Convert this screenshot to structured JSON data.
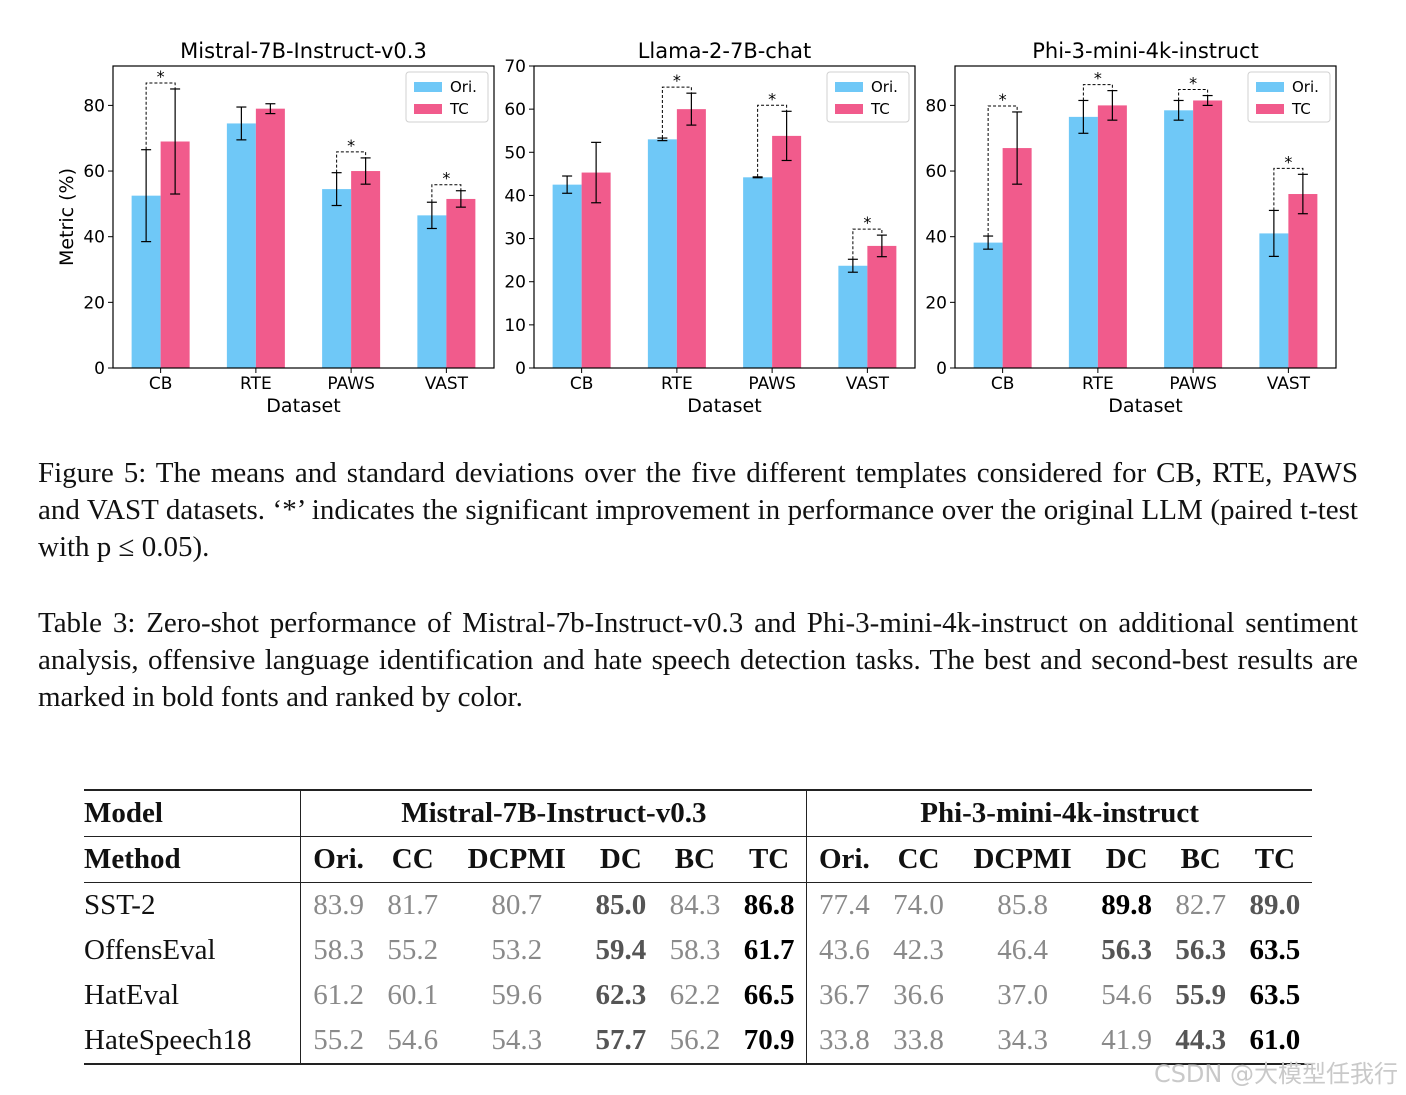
{
  "chart_data": [
    {
      "type": "bar",
      "title": "Mistral-7B-Instruct-v0.3",
      "xlabel": "Dataset",
      "ylabel": "Metric (%)",
      "categories": [
        "CB",
        "RTE",
        "PAWS",
        "VAST"
      ],
      "ylim": [
        0,
        92
      ],
      "yticks": [
        0,
        20,
        40,
        60,
        80
      ],
      "legend": [
        "Ori.",
        "TC"
      ],
      "legend_position": "top-right",
      "series": [
        {
          "name": "Ori.",
          "values": [
            52.5,
            74.5,
            54.5,
            46.5
          ],
          "errors": [
            14.0,
            5.0,
            5.0,
            4.0
          ]
        },
        {
          "name": "TC",
          "values": [
            69.0,
            79.0,
            60.0,
            51.5
          ],
          "errors": [
            16.0,
            1.5,
            4.0,
            2.5
          ]
        }
      ],
      "significant": [
        true,
        false,
        true,
        true
      ]
    },
    {
      "type": "bar",
      "title": "Llama-2-7B-chat",
      "xlabel": "Dataset",
      "ylabel": "",
      "categories": [
        "CB",
        "RTE",
        "PAWS",
        "VAST"
      ],
      "ylim": [
        0,
        70
      ],
      "yticks": [
        0,
        10,
        20,
        30,
        40,
        50,
        60,
        70
      ],
      "legend": [
        "Ori.",
        "TC"
      ],
      "legend_position": "top-right",
      "series": [
        {
          "name": "Ori.",
          "values": [
            42.5,
            53.0,
            44.2,
            23.7
          ],
          "errors": [
            2.0,
            0.3,
            0.1,
            1.5
          ]
        },
        {
          "name": "TC",
          "values": [
            45.3,
            60.0,
            53.8,
            28.3
          ],
          "errors": [
            7.0,
            3.7,
            5.7,
            2.5
          ]
        }
      ],
      "significant": [
        false,
        true,
        true,
        true
      ]
    },
    {
      "type": "bar",
      "title": "Phi-3-mini-4k-instruct",
      "xlabel": "Dataset",
      "ylabel": "",
      "categories": [
        "CB",
        "RTE",
        "PAWS",
        "VAST"
      ],
      "ylim": [
        0,
        92
      ],
      "yticks": [
        0,
        20,
        40,
        60,
        80
      ],
      "legend": [
        "Ori.",
        "TC"
      ],
      "legend_position": "top-right",
      "series": [
        {
          "name": "Ori.",
          "values": [
            38.2,
            76.5,
            78.5,
            41.0
          ],
          "errors": [
            2.0,
            5.0,
            3.0,
            7.0
          ]
        },
        {
          "name": "TC",
          "values": [
            67.0,
            80.0,
            81.5,
            53.0
          ],
          "errors": [
            11.0,
            4.5,
            1.5,
            6.0
          ]
        }
      ],
      "significant": [
        true,
        true,
        true,
        true
      ]
    }
  ],
  "figure": {
    "sig_marker": "*",
    "caption": "Figure 5: The means and standard deviations over the five different templates considered for CB, RTE, PAWS and VAST datasets. ‘*’ indicates the significant improvement in performance over the original LLM (paired t-test with p ≤ 0.05)."
  },
  "table_caption": "Table 3: Zero-shot performance of Mistral-7b-Instruct-v0.3 and Phi-3-mini-4k-instruct on additional sentiment analysis, offensive language identification and hate speech detection tasks. The best and second-best results are marked in bold fonts and ranked by color.",
  "table": {
    "model_label": "Model",
    "method_label": "Method",
    "groups": [
      "Mistral-7B-Instruct-v0.3",
      "Phi-3-mini-4k-instruct"
    ],
    "methods": [
      "Ori.",
      "CC",
      "DCPMI",
      "DC",
      "BC",
      "TC",
      "Ori.",
      "CC",
      "DCPMI",
      "DC",
      "BC",
      "TC"
    ],
    "rows": [
      {
        "name": "SST-2",
        "values": [
          "83.9",
          "81.7",
          "80.7",
          "85.0",
          "84.3",
          "86.8",
          "77.4",
          "74.0",
          "85.8",
          "89.8",
          "82.7",
          "89.0"
        ],
        "styles": [
          "p",
          "p",
          "p",
          "s",
          "p",
          "b",
          "p",
          "p",
          "p",
          "b",
          "p",
          "s"
        ]
      },
      {
        "name": "OffensEval",
        "values": [
          "58.3",
          "55.2",
          "53.2",
          "59.4",
          "58.3",
          "61.7",
          "43.6",
          "42.3",
          "46.4",
          "56.3",
          "56.3",
          "63.5"
        ],
        "styles": [
          "p",
          "p",
          "p",
          "s",
          "p",
          "b",
          "p",
          "p",
          "p",
          "s",
          "s",
          "b"
        ]
      },
      {
        "name": "HatEval",
        "values": [
          "61.2",
          "60.1",
          "59.6",
          "62.3",
          "62.2",
          "66.5",
          "36.7",
          "36.6",
          "37.0",
          "54.6",
          "55.9",
          "63.5"
        ],
        "styles": [
          "p",
          "p",
          "p",
          "s",
          "p",
          "b",
          "p",
          "p",
          "p",
          "p",
          "s",
          "b"
        ]
      },
      {
        "name": "HateSpeech18",
        "values": [
          "55.2",
          "54.6",
          "54.3",
          "57.7",
          "56.2",
          "70.9",
          "33.8",
          "33.8",
          "34.3",
          "41.9",
          "44.3",
          "61.0"
        ],
        "styles": [
          "p",
          "p",
          "p",
          "s",
          "p",
          "b",
          "p",
          "p",
          "p",
          "p",
          "s",
          "b"
        ]
      }
    ]
  },
  "watermark": "CSDN @大模型任我行",
  "colors": {
    "ori": "#6fc8f7",
    "tc": "#f15b8c"
  }
}
